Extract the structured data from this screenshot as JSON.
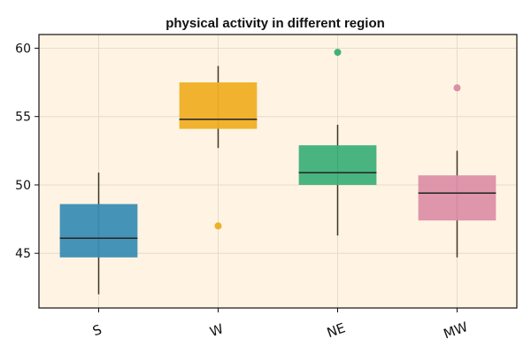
{
  "chart_data": {
    "type": "box",
    "title": "physical activity in different region",
    "xlabel": "",
    "ylabel": "",
    "categories": [
      "S",
      "W",
      "NE",
      "MW"
    ],
    "ylim": [
      41,
      61
    ],
    "yticks": [
      45,
      50,
      55,
      60
    ],
    "grid": true,
    "colors": {
      "plot_background": "#fff4e3",
      "frame": "#111111",
      "grid": "#e4dccd",
      "median": "#2b2b2b",
      "whisker": "#3d3526"
    },
    "boxes": [
      {
        "category": "S",
        "color": "#3b8db3",
        "whisker_low": 42.0,
        "q1": 44.7,
        "median": 46.1,
        "q3": 48.6,
        "whisker_high": 50.9,
        "outliers": []
      },
      {
        "category": "W",
        "color": "#f0af25",
        "whisker_low": 52.7,
        "q1": 54.1,
        "median": 54.8,
        "q3": 57.5,
        "whisker_high": 58.7,
        "outliers": [
          47.0
        ]
      },
      {
        "category": "NE",
        "color": "#3fb07a",
        "whisker_low": 46.3,
        "q1": 50.0,
        "median": 50.9,
        "q3": 52.9,
        "whisker_high": 54.4,
        "outliers": [
          59.7
        ]
      },
      {
        "category": "MW",
        "color": "#dd8fa6",
        "whisker_low": 44.7,
        "q1": 47.4,
        "median": 49.4,
        "q3": 50.7,
        "whisker_high": 52.5,
        "outliers": [
          57.1
        ]
      }
    ]
  }
}
